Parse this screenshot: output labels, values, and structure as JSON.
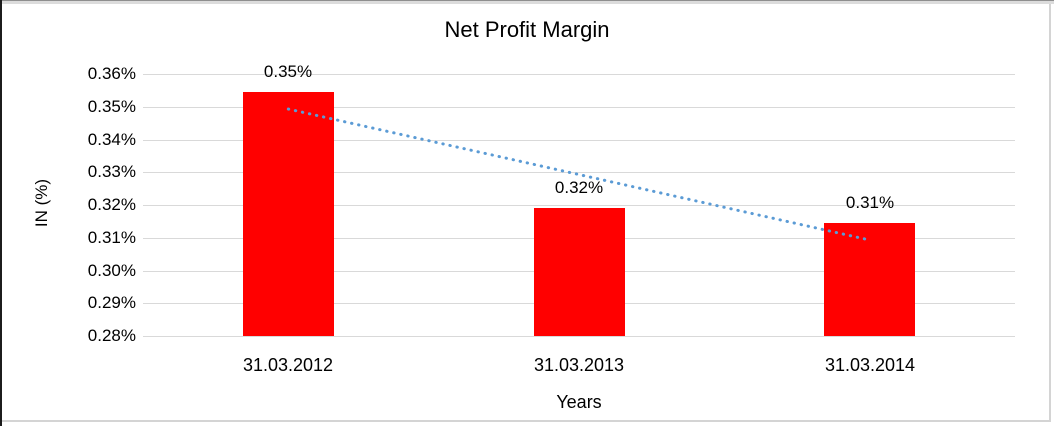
{
  "chart_data": {
    "type": "bar",
    "title": "Net Profit Margin",
    "xlabel": "Years",
    "ylabel": "IN (%)",
    "categories": [
      "31.03.2012",
      "31.03.2013",
      "31.03.2014"
    ],
    "values": [
      0.3545,
      0.319,
      0.3145
    ],
    "data_labels": [
      "0.35%",
      "0.32%",
      "0.31%"
    ],
    "ylim": [
      0.28,
      0.36
    ],
    "ytick_step": 0.01,
    "ytick_labels": [
      "0.36%",
      "0.35%",
      "0.34%",
      "0.33%",
      "0.32%",
      "0.31%",
      "0.30%",
      "0.29%",
      "0.28%"
    ],
    "grid": true,
    "legend": "none",
    "bar_color": "#FF0000",
    "gridline_color": "#D9D9D9",
    "trendline": {
      "type": "linear",
      "style": "dotted",
      "color": "#5B9BD5",
      "start_value": 0.3493,
      "end_value": 0.3093
    }
  }
}
